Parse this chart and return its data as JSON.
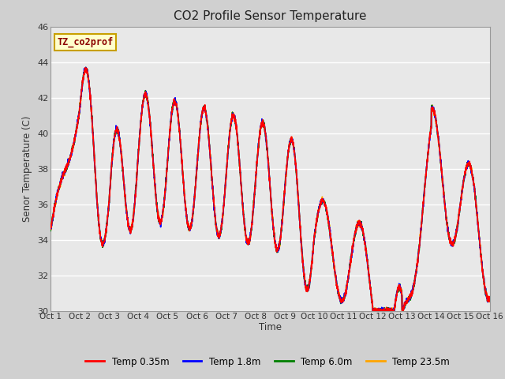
{
  "title": "CO2 Profile Sensor Temperature",
  "ylabel": "Senor Temperature (C)",
  "xlabel": "Time",
  "ylim": [
    30,
    46
  ],
  "xlim": [
    0,
    15
  ],
  "xtick_labels": [
    "Oct 1",
    "Oct 2",
    "Oct 3",
    "Oct 4",
    "Oct 5",
    "Oct 6",
    "Oct 7",
    "Oct 8",
    "Oct 9",
    "Oct 10",
    "Oct 11",
    "Oct 12",
    "Oct 13",
    "Oct 14",
    "Oct 15",
    "Oct 16"
  ],
  "ytick_values": [
    30,
    32,
    34,
    36,
    38,
    40,
    42,
    44,
    46
  ],
  "fig_bg_color": "#d0d0d0",
  "plot_bg_color": "#e8e8e8",
  "grid_color": "#ffffff",
  "legend_entries": [
    "Temp 0.35m",
    "Temp 1.8m",
    "Temp 6.0m",
    "Temp 23.5m"
  ],
  "legend_colors": [
    "red",
    "blue",
    "green",
    "orange"
  ],
  "annotation_text": "TZ_co2prof",
  "annotation_color": "#8b0000",
  "annotation_bg": "#ffffcc",
  "annotation_border": "#c8a000",
  "line_width": 1.2
}
